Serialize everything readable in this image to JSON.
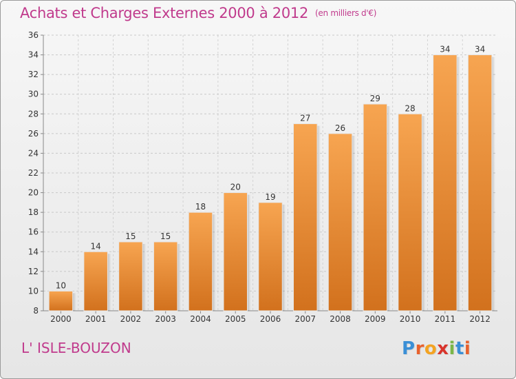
{
  "header": {
    "title": "Achats et Charges Externes 2000 à 2012",
    "subtitle": "(en milliers d'€)"
  },
  "footer": {
    "commune": "L' ISLE-BOUZON",
    "brand_letters": [
      "P",
      "r",
      "o",
      "x",
      "i",
      "t",
      "i"
    ],
    "brand_colors": [
      "#3a8fd6",
      "#e8612c",
      "#f3a322",
      "#d8342c",
      "#7ab648",
      "#3a8fd6",
      "#e8612c"
    ]
  },
  "chart_data": {
    "type": "bar",
    "categories": [
      "2000",
      "2001",
      "2002",
      "2003",
      "2004",
      "2005",
      "2006",
      "2007",
      "2008",
      "2009",
      "2010",
      "2011",
      "2012"
    ],
    "values": [
      10,
      14,
      15,
      15,
      18,
      20,
      19,
      27,
      26,
      29,
      28,
      34,
      34
    ],
    "ylim": [
      8,
      36
    ],
    "yticks": [
      8,
      10,
      12,
      14,
      16,
      18,
      20,
      22,
      24,
      26,
      28,
      30,
      32,
      34,
      36
    ],
    "grid": true,
    "bar_color_top": "#f7a551",
    "bar_color_bottom": "#d2711d"
  }
}
